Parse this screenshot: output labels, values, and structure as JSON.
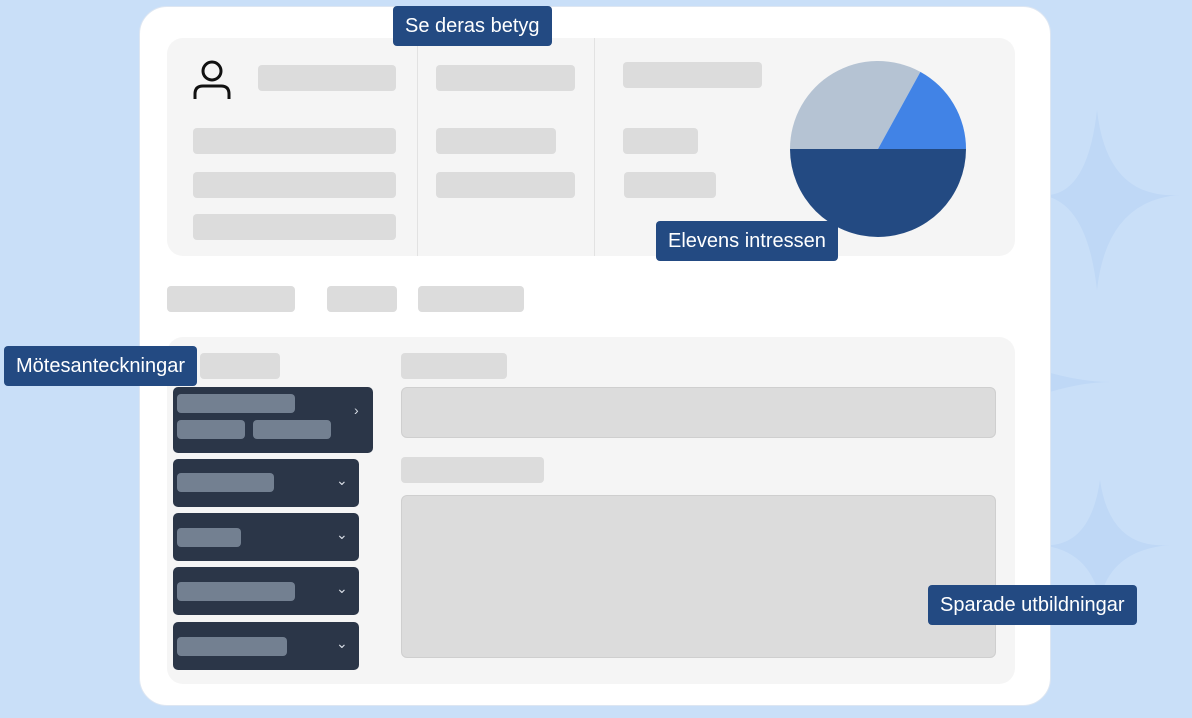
{
  "labels": {
    "grades": "Se deras betyg",
    "interests": "Elevens intressen",
    "meeting_notes": "Mötesanteckningar",
    "saved_educations": "Sparade utbildningar"
  },
  "icons": {
    "profile": "user-icon",
    "expand": "chevron-right-icon",
    "collapse": "chevron-down-icon"
  },
  "interests_pie": {
    "slices": [
      {
        "fraction": 0.33,
        "color": "#b5c3d3"
      },
      {
        "fraction": 0.17,
        "color": "#4183e6"
      },
      {
        "fraction": 0.5,
        "color": "#234a82"
      }
    ]
  },
  "colors": {
    "background": "#c9dff8",
    "accent": "#234a82",
    "sidebar_item": "#2b3648"
  }
}
